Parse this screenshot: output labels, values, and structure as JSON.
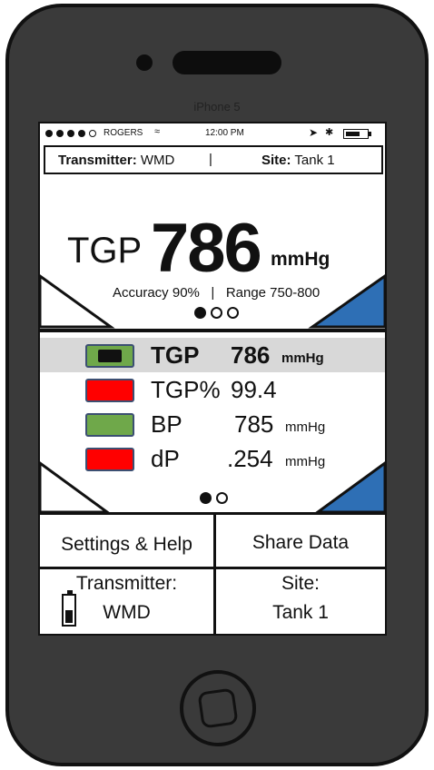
{
  "device": {
    "model_label": "iPhone 5"
  },
  "status_bar": {
    "carrier": "ROGERS",
    "time": "12:00 PM",
    "signal_dots": [
      true,
      true,
      true,
      true,
      false
    ]
  },
  "info_bar": {
    "transmitter_label": "Transmitter:",
    "transmitter_value": "WMD",
    "separator": "|",
    "site_label": "Site:",
    "site_value": "Tank 1"
  },
  "panel_main": {
    "label": "TGP",
    "value": "786",
    "unit": "mmHg",
    "accuracy_text": "Accuracy 90%",
    "separator": "|",
    "range_text": "Range 750-800",
    "page_dots": [
      true,
      false,
      false
    ],
    "colors": {
      "corner_blue": "#2e6fb5"
    }
  },
  "readings": {
    "rows": [
      {
        "label": "TGP",
        "value": "786",
        "unit": "mmHg",
        "color": "#6fa84a",
        "highlighted": true,
        "bold": true
      },
      {
        "label": "TGP%",
        "value": "99.4",
        "unit": "",
        "color": "#ff0000",
        "highlighted": false,
        "bold": false
      },
      {
        "label": "BP",
        "value": "785",
        "unit": "mmHg",
        "color": "#6fa84a",
        "highlighted": false,
        "bold": false
      },
      {
        "label": "dP",
        "value": ".254",
        "unit": "mmHg",
        "color": "#ff0000",
        "highlighted": false,
        "bold": false
      }
    ],
    "page_dots": [
      true,
      false
    ]
  },
  "buttons": {
    "settings_label": "Settings & Help",
    "share_label": "Share Data",
    "transmitter_label": "Transmitter:",
    "transmitter_value": "WMD",
    "site_label": "Site:",
    "site_value": "Tank 1"
  }
}
